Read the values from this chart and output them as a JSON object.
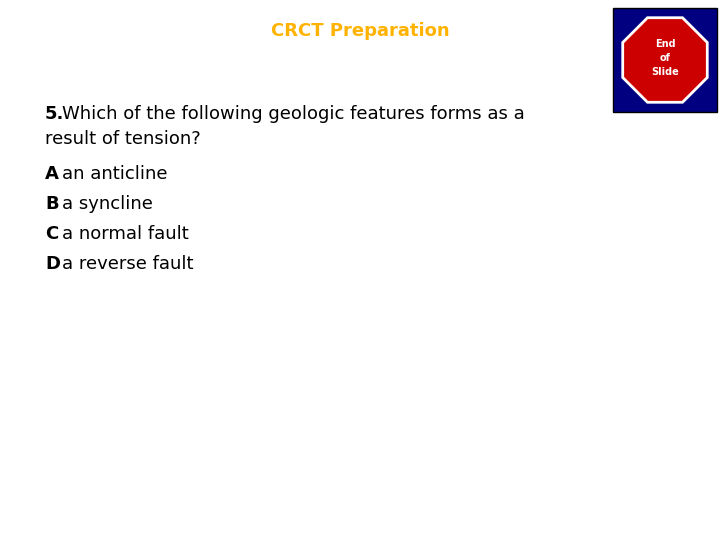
{
  "title": "CRCT Preparation",
  "title_color": "#FFB300",
  "title_fontsize": 13,
  "background_color": "#FFFFFF",
  "question_fontsize": 13,
  "option_fontsize": 13,
  "options": [
    {
      "letter": "A",
      "text": "an anticline"
    },
    {
      "letter": "B",
      "text": "a syncline"
    },
    {
      "letter": "C",
      "text": "a normal fault"
    },
    {
      "letter": "D",
      "text": "a reverse fault"
    }
  ],
  "badge_bg": "#000080",
  "badge_stop_color": "#CC0000",
  "badge_text_color": "#FFFFFF"
}
